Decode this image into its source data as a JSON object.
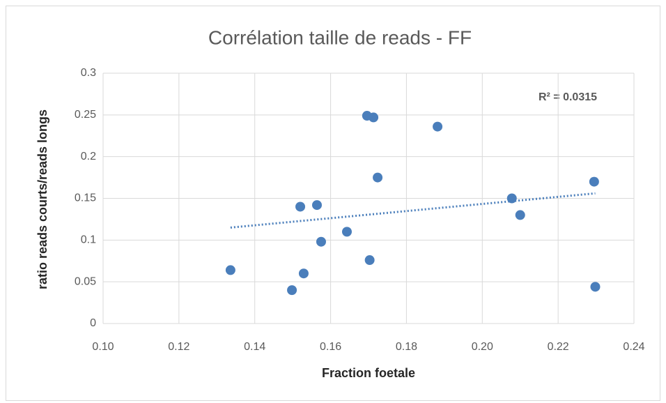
{
  "chart_data": {
    "type": "scatter",
    "title": "Corrélation taille de reads - FF",
    "x_label": "Fraction foetale",
    "y_label": "ratio reads courts/reads longs",
    "annotation": "R² = 0.0315",
    "series": [
      {
        "color": "#4a7ebb",
        "x": [
          0.1336,
          0.1498,
          0.1529,
          0.152,
          0.1564,
          0.1575,
          0.1643,
          0.1696,
          0.1713,
          0.1703,
          0.1724,
          0.1882,
          0.2078,
          0.21,
          0.2295,
          0.2298
        ],
        "values": [
          0.064,
          0.04,
          0.06,
          0.14,
          0.142,
          0.098,
          0.11,
          0.249,
          0.247,
          0.076,
          0.175,
          0.236,
          0.15,
          0.13,
          0.17,
          0.044
        ]
      }
    ],
    "trendline": {
      "color": "#4a7ebb",
      "x": [
        0.1336,
        0.2298
      ],
      "values": [
        0.115,
        0.156
      ]
    },
    "xlim": [
      0.1,
      0.24
    ],
    "xticks": [
      {
        "value": 0.1,
        "label": "0.10"
      },
      {
        "value": 0.12,
        "label": "0.12"
      },
      {
        "value": 0.14,
        "label": "0.14"
      },
      {
        "value": 0.16,
        "label": "0.16"
      },
      {
        "value": 0.18,
        "label": "0.18"
      },
      {
        "value": 0.2,
        "label": "0.20"
      },
      {
        "value": 0.22,
        "label": "0.22"
      },
      {
        "value": 0.24,
        "label": "0.24"
      }
    ],
    "ylim": [
      0,
      0.3
    ],
    "yticks": [
      0,
      0.05,
      0.1,
      0.15,
      0.2,
      0.25,
      0.3
    ],
    "grid": true
  }
}
